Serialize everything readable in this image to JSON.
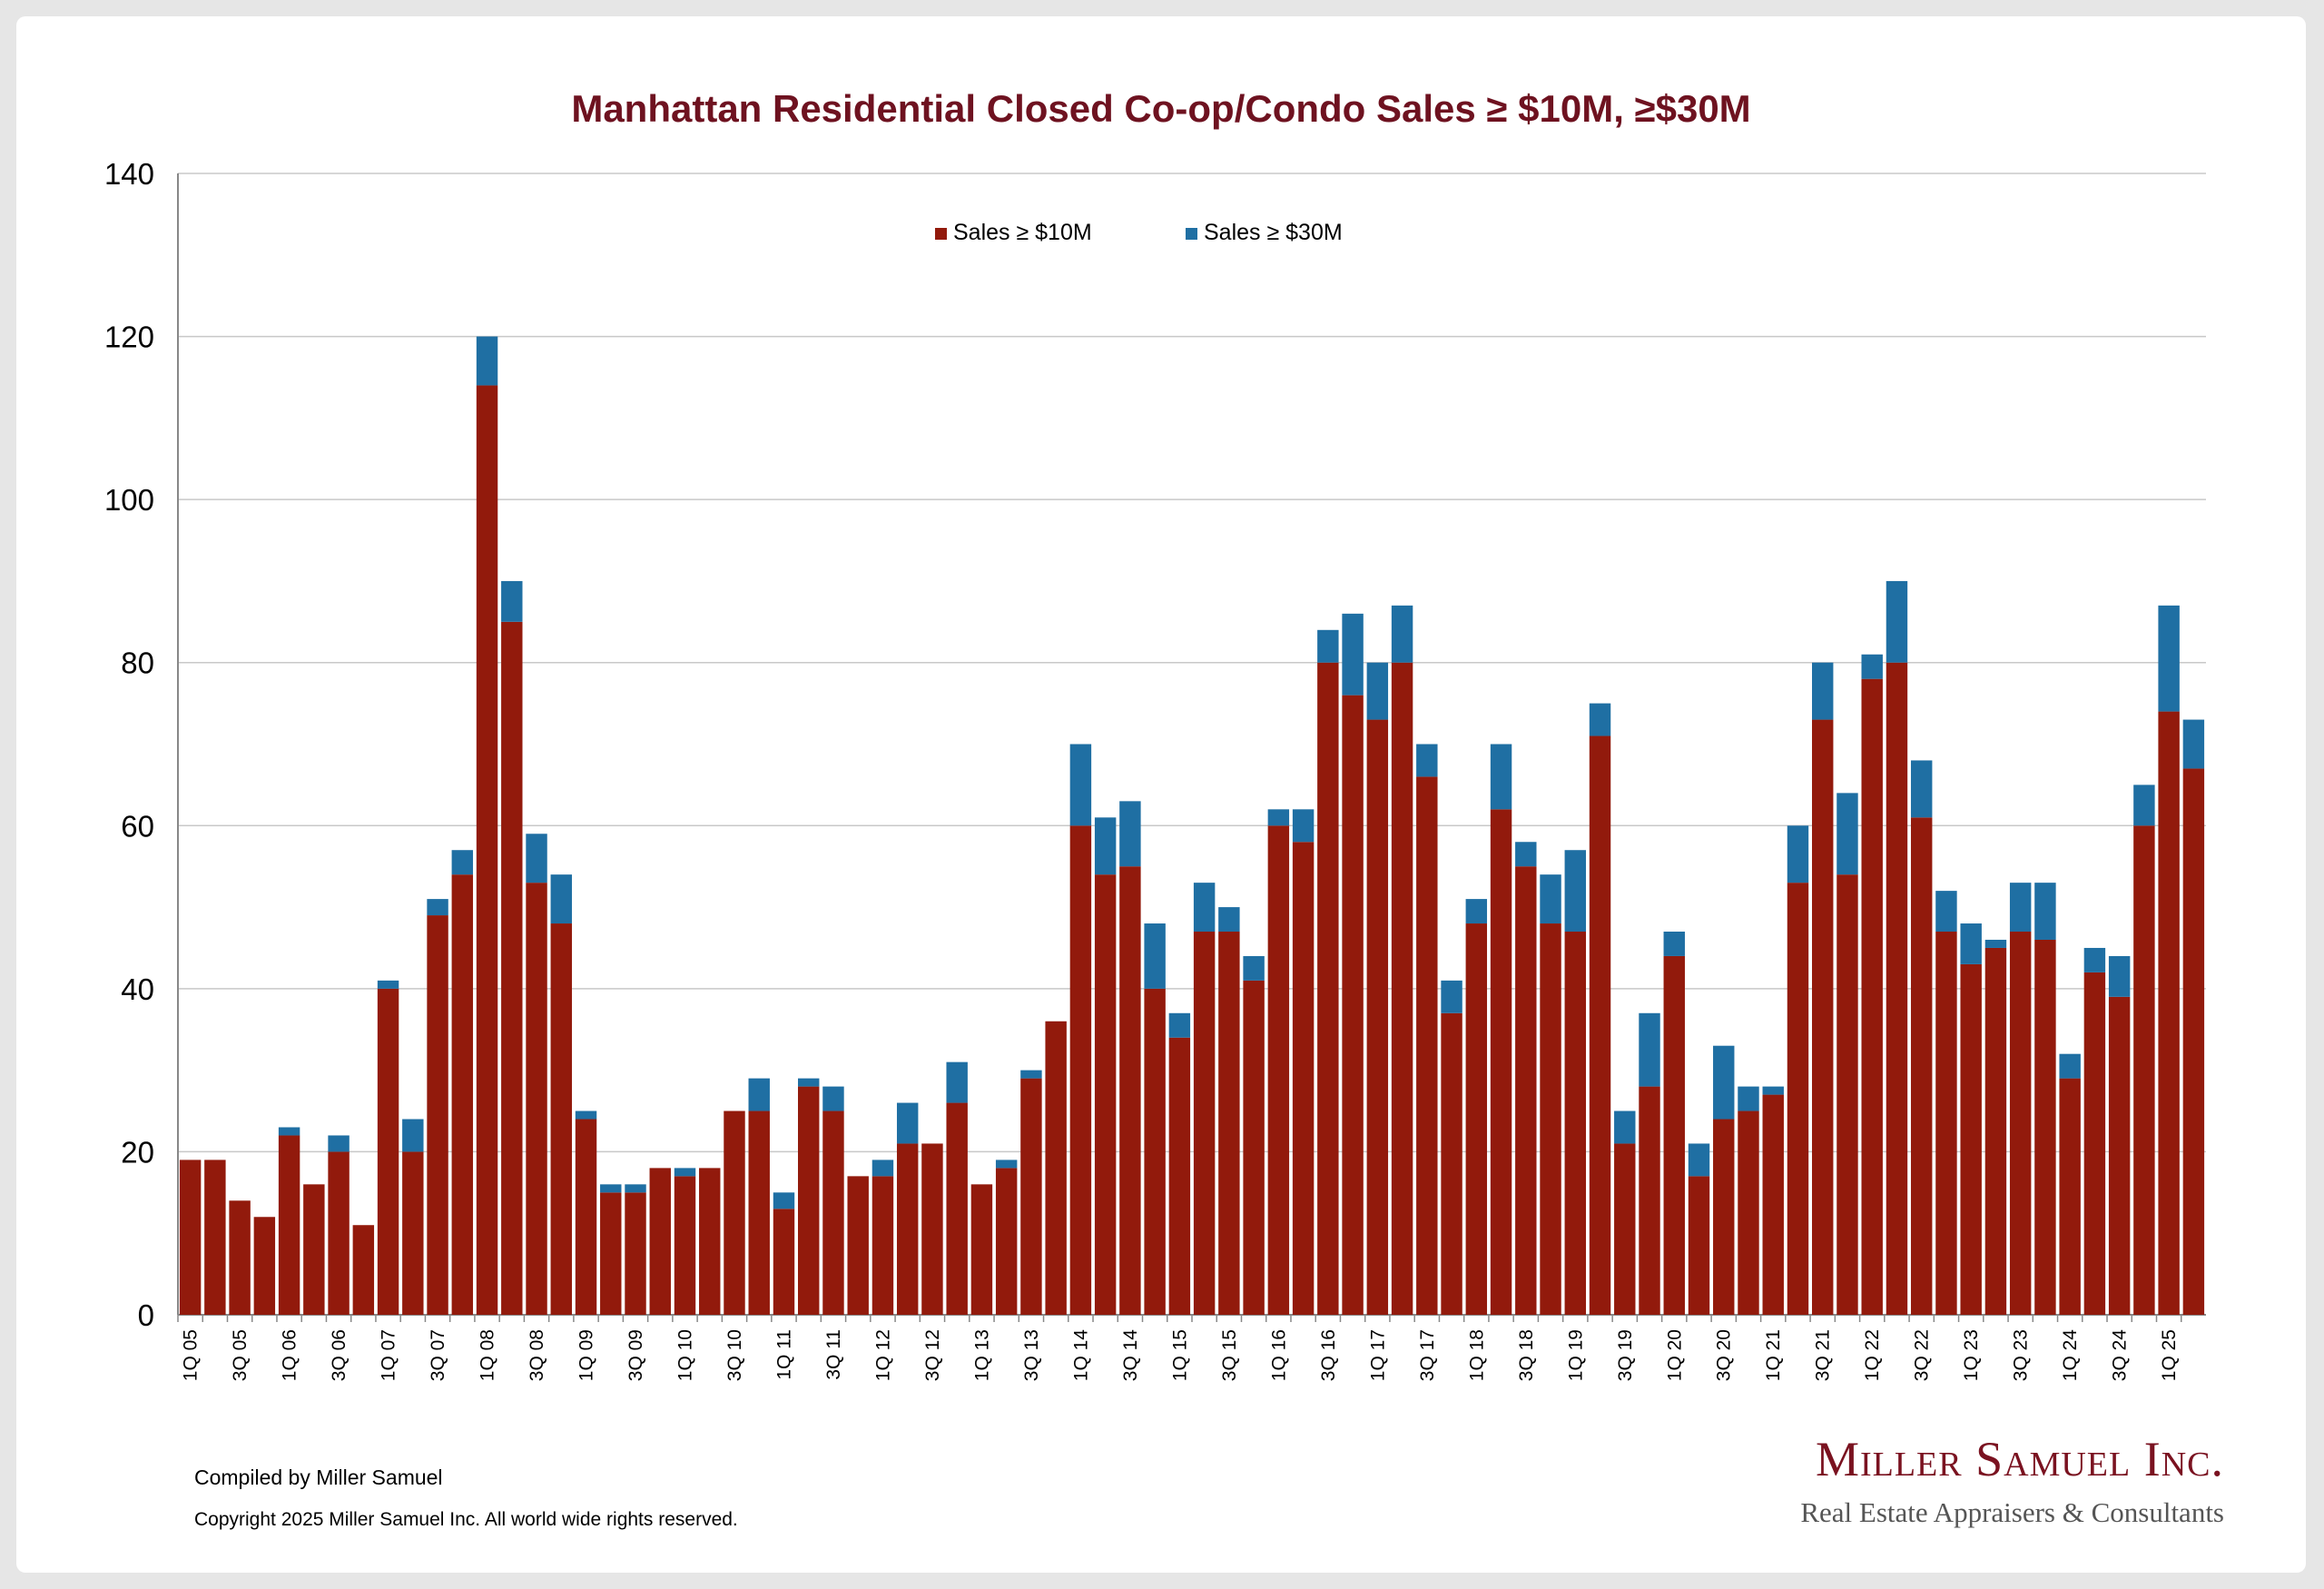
{
  "chart_data": {
    "type": "bar",
    "stacked": true,
    "title": "Manhattan Residential Closed Co-op/Condo Sales ≥ $10M, ≥$30M",
    "xlabel": "",
    "ylabel": "",
    "ylim": [
      0,
      140
    ],
    "yticks": [
      0,
      20,
      40,
      60,
      80,
      100,
      120,
      140
    ],
    "grid": true,
    "legend_position": "top-center",
    "categories": [
      "1Q 05",
      "2Q 05",
      "3Q 05",
      "4Q 05",
      "1Q 06",
      "2Q 06",
      "3Q 06",
      "4Q 06",
      "1Q 07",
      "2Q 07",
      "3Q 07",
      "4Q 07",
      "1Q 08",
      "2Q 08",
      "3Q 08",
      "4Q 08",
      "1Q 09",
      "2Q 09",
      "3Q 09",
      "4Q 09",
      "1Q 10",
      "2Q 10",
      "3Q 10",
      "4Q 10",
      "1Q 11",
      "2Q 11",
      "3Q 11",
      "4Q 11",
      "1Q 12",
      "2Q 12",
      "3Q 12",
      "4Q 12",
      "1Q 13",
      "2Q 13",
      "3Q 13",
      "4Q 13",
      "1Q 14",
      "2Q 14",
      "3Q 14",
      "4Q 14",
      "1Q 15",
      "2Q 15",
      "3Q 15",
      "4Q 15",
      "1Q 16",
      "2Q 16",
      "3Q 16",
      "4Q 16",
      "1Q 17",
      "2Q 17",
      "3Q 17",
      "4Q 17",
      "1Q 18",
      "2Q 18",
      "3Q 18",
      "4Q 18",
      "1Q 19",
      "2Q 19",
      "3Q 19",
      "4Q 19",
      "1Q 20",
      "2Q 20",
      "3Q 20",
      "4Q 20",
      "1Q 21",
      "2Q 21",
      "3Q 21",
      "4Q 21",
      "1Q 22",
      "2Q 22",
      "3Q 22",
      "4Q 22",
      "1Q 23",
      "2Q 23",
      "3Q 23",
      "4Q 23",
      "1Q 24",
      "2Q 24",
      "3Q 24",
      "4Q 24",
      "1Q 25",
      "2Q 25"
    ],
    "visible_tick_labels": [
      "1Q 05",
      "3Q 05",
      "1Q 06",
      "3Q 06",
      "1Q 07",
      "3Q 07",
      "1Q 08",
      "3Q 08",
      "1Q 09",
      "3Q 09",
      "1Q 10",
      "3Q 10",
      "1Q 11",
      "3Q 11",
      "1Q 12",
      "3Q 12",
      "1Q 13",
      "3Q 13",
      "1Q 14",
      "3Q 14",
      "1Q 15",
      "3Q 15",
      "1Q 16",
      "3Q 16",
      "1Q 17",
      "3Q 17",
      "1Q 18",
      "3Q 18",
      "1Q 19",
      "3Q 19",
      "1Q 20",
      "3Q 20",
      "1Q 21",
      "3Q 21",
      "1Q 22",
      "3Q 22",
      "1Q 23",
      "3Q 23",
      "1Q 24",
      "3Q 24",
      "1Q 25"
    ],
    "series": [
      {
        "name": "Sales ≥ $10M",
        "color": "#921a0c",
        "values": [
          19,
          19,
          14,
          12,
          22,
          16,
          20,
          11,
          40,
          20,
          49,
          54,
          114,
          85,
          53,
          48,
          24,
          15,
          15,
          18,
          17,
          18,
          25,
          25,
          13,
          28,
          25,
          17,
          17,
          21,
          21,
          26,
          16,
          18,
          29,
          36,
          60,
          54,
          55,
          40,
          34,
          47,
          47,
          41,
          60,
          58,
          80,
          76,
          73,
          80,
          66,
          37,
          48,
          62,
          55,
          48,
          47,
          71,
          21,
          28,
          44,
          17,
          24,
          25,
          27,
          53,
          73,
          54,
          78,
          80,
          61,
          47,
          43,
          45,
          47,
          46,
          29,
          42,
          39,
          60,
          74,
          67
        ]
      },
      {
        "name": "Sales ≥ $30M",
        "color": "#1f6fa3",
        "values": [
          0,
          0,
          0,
          0,
          1,
          0,
          2,
          0,
          1,
          4,
          2,
          3,
          6,
          5,
          6,
          6,
          1,
          1,
          1,
          0,
          1,
          0,
          0,
          4,
          2,
          1,
          3,
          0,
          2,
          5,
          0,
          5,
          0,
          1,
          1,
          0,
          10,
          7,
          8,
          8,
          3,
          6,
          3,
          3,
          2,
          4,
          4,
          10,
          7,
          7,
          4,
          4,
          3,
          8,
          3,
          6,
          10,
          4,
          4,
          9,
          3,
          4,
          9,
          3,
          1,
          7,
          7,
          10,
          3,
          10,
          7,
          5,
          5,
          1,
          6,
          7,
          3,
          3,
          5,
          5,
          13,
          6
        ]
      }
    ]
  },
  "footer": {
    "compiled": "Compiled by Miller Samuel",
    "copyright": "Copyright 2025 Miller Samuel Inc.  All world wide rights reserved."
  },
  "logo": {
    "name": "Miller Samuel Inc.",
    "tagline": "Real Estate Appraisers & Consultants"
  }
}
